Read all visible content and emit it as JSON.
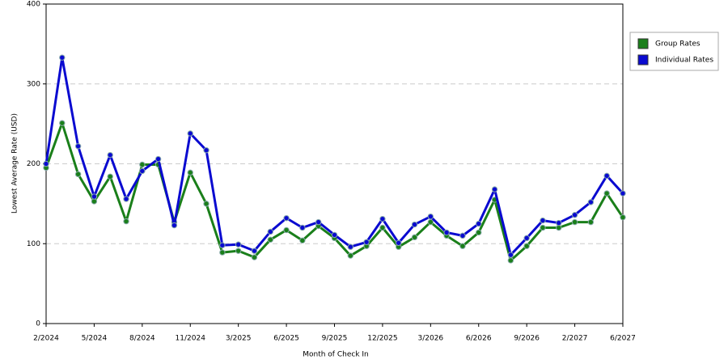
{
  "chart_data": {
    "type": "line",
    "xlabel": "Month of Check In",
    "ylabel": "Lowest Average Rate (USD)",
    "categories": [
      "2/2024",
      null,
      null,
      "5/2024",
      null,
      null,
      "8/2024",
      null,
      null,
      "11/2024",
      null,
      null,
      "3/2025",
      null,
      null,
      "6/2025",
      null,
      null,
      "9/2025",
      null,
      null,
      "12/2025",
      null,
      null,
      "3/2026",
      null,
      null,
      "6/2026",
      null,
      null,
      "9/2026",
      null,
      null,
      "2/2027",
      null,
      null,
      "6/2027"
    ],
    "series": [
      {
        "name": "Group Rates",
        "color": "#1a7f1a",
        "values": [
          195,
          251,
          187,
          153,
          184,
          128,
          199,
          199,
          127,
          189,
          150,
          89,
          91,
          83,
          105,
          117,
          104,
          122,
          107,
          85,
          97,
          120,
          96,
          108,
          127,
          110,
          97,
          114,
          155,
          79,
          97,
          120,
          120,
          127,
          127,
          163,
          133
        ]
      },
      {
        "name": "Individual Rates",
        "color": "#0a0ad0",
        "values": [
          200,
          333,
          222,
          159,
          211,
          156,
          191,
          206,
          123,
          238,
          217,
          98,
          99,
          91,
          115,
          132,
          120,
          127,
          111,
          96,
          102,
          131,
          101,
          124,
          134,
          114,
          110,
          125,
          168,
          86,
          107,
          129,
          126,
          136,
          152,
          185,
          163
        ]
      }
    ],
    "ylim": [
      0,
      400
    ],
    "yticks": [
      0,
      100,
      200,
      300,
      400
    ],
    "grid": true
  }
}
